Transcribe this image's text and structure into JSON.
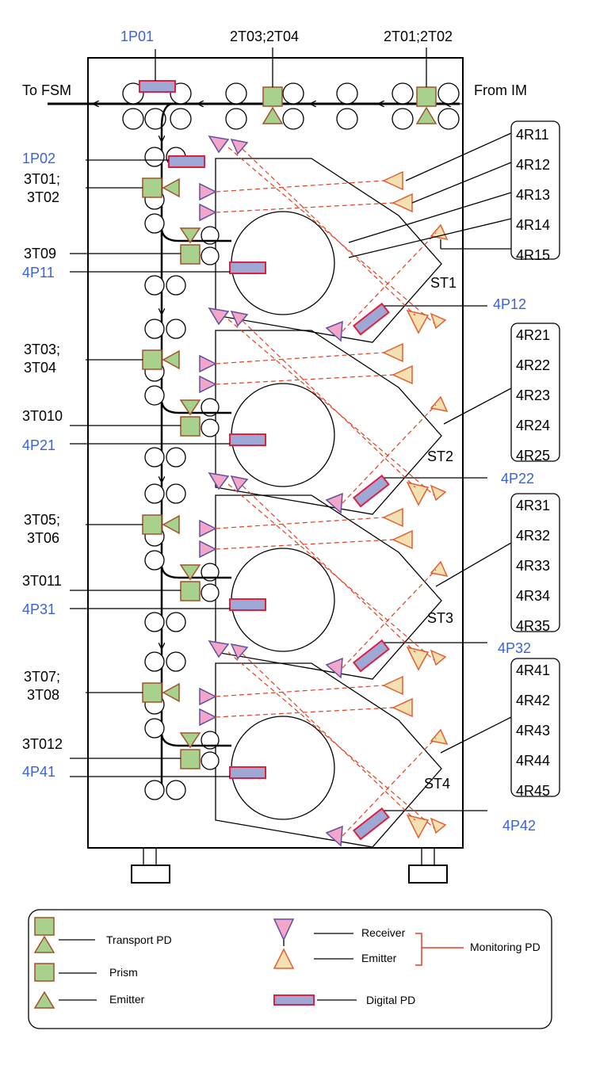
{
  "colors": {
    "prism": "#a9d18e",
    "prism_border": "#a0522d",
    "emitter": "#f4e0b0",
    "emitter_border": "#e06030",
    "receiver": "#f4a6c8",
    "receiver_border": "#6050a0",
    "digital": "#9ea8d4",
    "digital_border": "#e02040",
    "blue_text": "#3a63d8"
  },
  "labels": {
    "to_fsm": "To FSM",
    "from_im": "From IM",
    "p1p01": "1P01",
    "t2t03": "2T03;2T04",
    "t2t01": "2T01;2T02",
    "p1p02": "1P02",
    "t3t01a": "3T01;",
    "t3t01b": "3T02",
    "t3t09": "3T09",
    "p4p11": "4P11",
    "p4p12": "4P12",
    "t3t03a": "3T03;",
    "t3t03b": "3T04",
    "t3t010": "3T010",
    "p4p21": "4P21",
    "p4p22": "4P22",
    "t3t05a": "3T05;",
    "t3t05b": "3T06",
    "t3t011": "3T011",
    "p4p31": "4P31",
    "p4p32": "4P32",
    "t3t07a": "3T07;",
    "t3t07b": "3T08",
    "t3t012": "3T012",
    "p4p41": "4P41",
    "p4p42": "4P42",
    "st1": "ST1",
    "st2": "ST2",
    "st3": "ST3",
    "st4": "ST4"
  },
  "r_groups": [
    [
      "4R11",
      "4R12",
      "4R13",
      "4R14",
      "4R15"
    ],
    [
      "4R21",
      "4R22",
      "4R23",
      "4R24",
      "4R25"
    ],
    [
      "4R31",
      "4R32",
      "4R33",
      "4R34",
      "4R35"
    ],
    [
      "4R41",
      "4R42",
      "4R43",
      "4R44",
      "4R45"
    ]
  ],
  "legend": {
    "transport": "Transport PD",
    "prism": "Prism",
    "emitter": "Emitter",
    "receiver": "Receiver",
    "mon_emitter": "Emitter",
    "monitoring": "Monitoring PD",
    "digital": "Digital PD"
  }
}
